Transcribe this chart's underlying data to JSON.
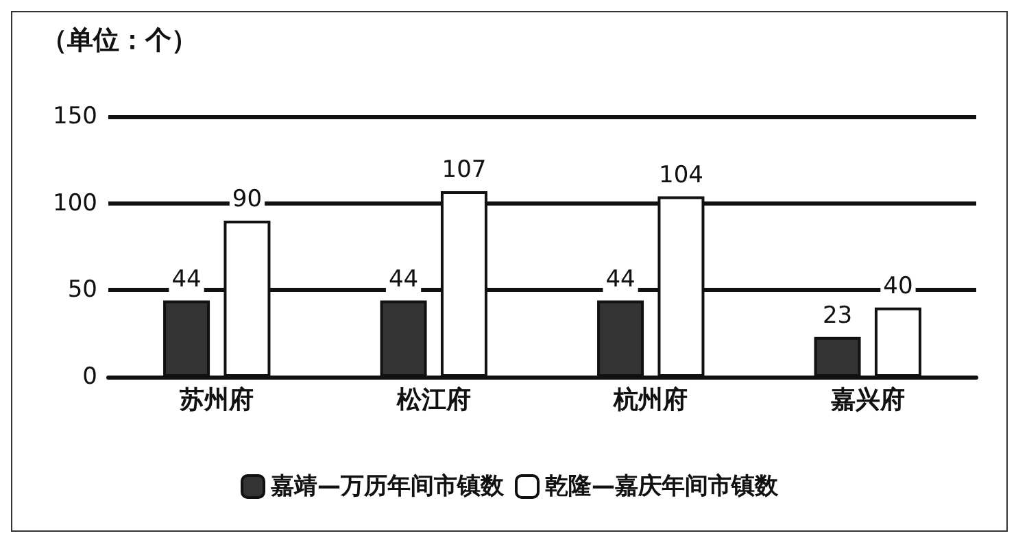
{
  "chart_data": {
    "type": "bar",
    "ylabel": "（单位：个）",
    "categories": [
      "苏州府",
      "松江府",
      "杭州府",
      "嘉兴府"
    ],
    "series": [
      {
        "name": "嘉靖—万历年间市镇数",
        "color": "#333333",
        "values": [
          44,
          44,
          44,
          23
        ]
      },
      {
        "name": "乾隆—嘉庆年间市镇数",
        "color": "#ffffff",
        "values": [
          90,
          107,
          104,
          40
        ]
      }
    ],
    "ylim": [
      0,
      150
    ],
    "yticks": [
      0,
      50,
      100,
      150
    ],
    "grid": "y",
    "legend": "bottom",
    "data_labels": true
  }
}
